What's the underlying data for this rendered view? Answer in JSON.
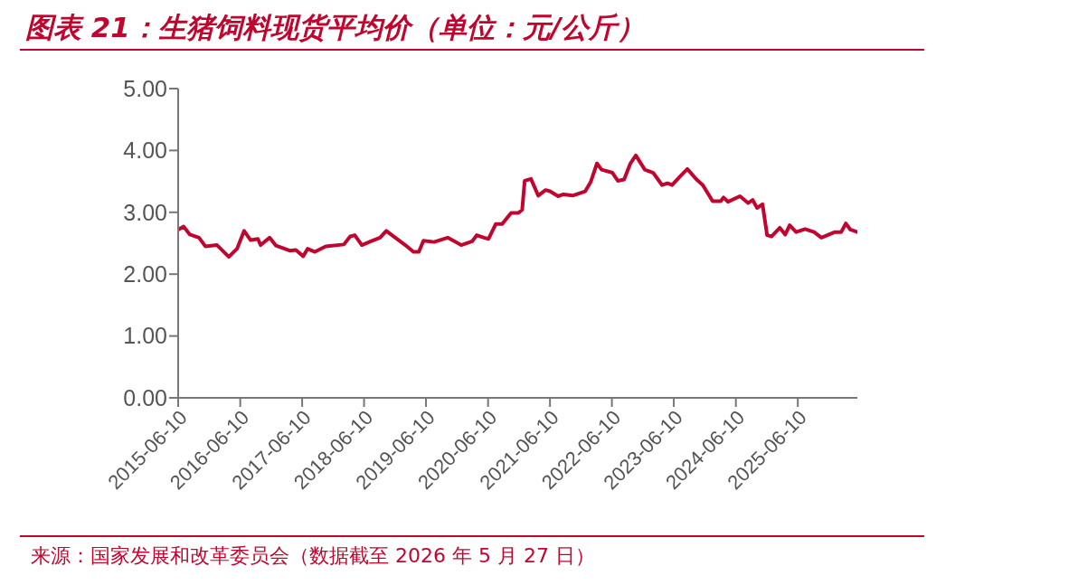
{
  "chart_data": {
    "type": "line",
    "title": "图表 21：生猪饲料现货平均价（单位：元/公斤）",
    "annotations": [
      "来源：国家发展和改革委员会（数据截至 2026 年 5 月 27 日）"
    ],
    "x": [
      "2015-06-10",
      "2015-07-12",
      "2015-08-18",
      "2015-10-11",
      "2015-11-17",
      "2016-01-25",
      "2016-04-04",
      "2016-05-22",
      "2016-07-03",
      "2016-08-10",
      "2016-09-22",
      "2016-10-08",
      "2016-11-30",
      "2017-01-07",
      "2017-03-28",
      "2017-05-04",
      "2017-06-16",
      "2017-07-12",
      "2017-08-24",
      "2017-10-27",
      "2018-02-11",
      "2018-03-20",
      "2018-04-16",
      "2018-05-28",
      "2018-07-20",
      "2018-09-12",
      "2018-10-19",
      "2018-12-11",
      "2019-02-08",
      "2019-03-28",
      "2019-04-29",
      "2019-05-26",
      "2019-07-28",
      "2019-10-16",
      "2020-01-04",
      "2020-03-08",
      "2020-04-04",
      "2020-05-17",
      "2020-06-13",
      "2020-07-25",
      "2020-09-01",
      "2020-09-27",
      "2020-10-24",
      "2020-12-06",
      "2020-12-28",
      "2021-01-12",
      "2021-02-18",
      "2021-04-02",
      "2021-05-15",
      "2021-06-10",
      "2021-07-28",
      "2021-08-29",
      "2021-10-22",
      "2022-01-04",
      "2022-02-05",
      "2022-03-14",
      "2022-04-10",
      "2022-06-13",
      "2022-07-15",
      "2022-08-21",
      "2022-09-27",
      "2022-10-29",
      "2022-12-21",
      "2023-02-08",
      "2023-04-02",
      "2023-05-04",
      "2023-05-31",
      "2023-07-17",
      "2023-08-29",
      "2023-10-22",
      "2023-11-28",
      "2024-01-25",
      "2024-03-13",
      "2024-03-29",
      "2024-04-25",
      "2024-07-04",
      "2024-08-21",
      "2024-09-17",
      "2024-10-13",
      "2024-11-14",
      "2024-12-11",
      "2025-01-07",
      "2025-02-24",
      "2025-03-28",
      "2025-04-23",
      "2025-05-31",
      "2025-07-23",
      "2025-09-14",
      "2025-10-27",
      "2026-01-15",
      "2026-02-21",
      "2026-03-20",
      "2026-04-16",
      "2026-05-27"
    ],
    "series": [
      {
        "color": "#c0062f",
        "values": [
          2.72,
          2.77,
          2.64,
          2.59,
          2.45,
          2.47,
          2.28,
          2.41,
          2.7,
          2.55,
          2.57,
          2.47,
          2.59,
          2.46,
          2.38,
          2.39,
          2.29,
          2.41,
          2.36,
          2.45,
          2.48,
          2.61,
          2.63,
          2.47,
          2.53,
          2.59,
          2.7,
          2.59,
          2.47,
          2.36,
          2.36,
          2.54,
          2.52,
          2.59,
          2.47,
          2.53,
          2.63,
          2.59,
          2.57,
          2.81,
          2.81,
          2.9,
          2.99,
          2.99,
          3.04,
          3.51,
          3.54,
          3.27,
          3.36,
          3.34,
          3.26,
          3.29,
          3.27,
          3.34,
          3.49,
          3.79,
          3.69,
          3.64,
          3.51,
          3.53,
          3.79,
          3.92,
          3.69,
          3.64,
          3.44,
          3.47,
          3.44,
          3.58,
          3.7,
          3.53,
          3.44,
          3.18,
          3.18,
          3.24,
          3.17,
          3.26,
          3.15,
          3.2,
          3.07,
          3.13,
          2.63,
          2.61,
          2.75,
          2.64,
          2.79,
          2.68,
          2.73,
          2.68,
          2.59,
          2.68,
          2.68,
          2.82,
          2.72,
          2.68
        ]
      }
    ],
    "xlim": [
      "2015-06-10",
      "2026-05-27"
    ],
    "xticks": [
      "2015-06-10",
      "2016-06-10",
      "2017-06-10",
      "2018-06-10",
      "2019-06-10",
      "2020-06-10",
      "2021-06-10",
      "2022-06-10",
      "2023-06-10",
      "2024-06-10",
      "2025-06-10"
    ],
    "ylim": [
      0,
      5
    ],
    "yticks": [
      {
        "value": 0,
        "label": "0.00"
      },
      {
        "value": 1,
        "label": "1.00"
      },
      {
        "value": 2,
        "label": "2.00"
      },
      {
        "value": 3,
        "label": "3.00"
      },
      {
        "value": 4,
        "label": "4.00"
      },
      {
        "value": 5,
        "label": "5.00"
      }
    ],
    "grid": false,
    "legend": false,
    "marker": "none",
    "line_style": "solid"
  }
}
